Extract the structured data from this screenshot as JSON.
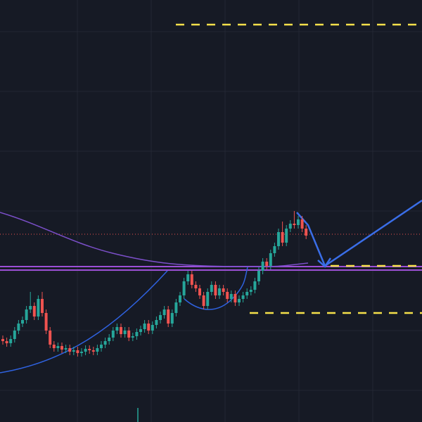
{
  "chart_data": {
    "type": "candlestick",
    "ylim": [
      0,
      600
    ],
    "up_color": "#26a69a",
    "down_color": "#ef5350",
    "open": [
      118,
      115,
      112,
      118,
      130,
      140,
      145,
      160,
      165,
      150,
      175,
      155,
      130,
      110,
      105,
      108,
      103,
      105,
      100,
      102,
      98,
      100,
      104,
      102,
      100,
      105,
      110,
      115,
      120,
      130,
      135,
      125,
      130,
      120,
      122,
      128,
      132,
      140,
      130,
      138,
      145,
      152,
      160,
      140,
      155,
      170,
      180,
      200,
      210,
      195,
      190,
      180,
      165,
      185,
      195,
      180,
      190,
      185,
      175,
      182,
      170,
      175,
      180,
      185,
      188,
      200,
      215,
      228,
      222,
      240,
      250,
      270,
      255,
      275,
      282,
      280,
      288,
      275
    ],
    "high": [
      123,
      120,
      123,
      135,
      145,
      150,
      165,
      185,
      170,
      180,
      185,
      160,
      135,
      115,
      113,
      113,
      110,
      110,
      107,
      107,
      105,
      109,
      109,
      107,
      110,
      115,
      120,
      125,
      135,
      140,
      140,
      135,
      135,
      127,
      133,
      137,
      145,
      145,
      143,
      150,
      157,
      165,
      165,
      160,
      175,
      185,
      205,
      215,
      215,
      200,
      195,
      185,
      190,
      200,
      200,
      195,
      195,
      190,
      187,
      187,
      180,
      185,
      190,
      193,
      205,
      220,
      233,
      233,
      245,
      255,
      275,
      285,
      280,
      287,
      300,
      293,
      293,
      280
    ],
    "low": [
      110,
      107,
      107,
      113,
      125,
      135,
      140,
      155,
      145,
      145,
      150,
      125,
      105,
      100,
      100,
      98,
      98,
      95,
      95,
      93,
      93,
      95,
      97,
      95,
      95,
      100,
      105,
      110,
      115,
      125,
      120,
      120,
      115,
      115,
      117,
      123,
      127,
      125,
      125,
      133,
      140,
      147,
      135,
      135,
      150,
      165,
      175,
      195,
      190,
      185,
      175,
      160,
      160,
      180,
      175,
      175,
      180,
      170,
      170,
      165,
      165,
      170,
      175,
      180,
      183,
      195,
      210,
      217,
      217,
      235,
      245,
      250,
      250,
      270,
      275,
      275,
      270,
      260
    ],
    "close": [
      115,
      112,
      118,
      130,
      140,
      145,
      160,
      165,
      150,
      175,
      155,
      130,
      110,
      105,
      108,
      103,
      105,
      100,
      102,
      98,
      100,
      104,
      102,
      100,
      105,
      110,
      115,
      120,
      130,
      135,
      125,
      130,
      120,
      122,
      128,
      132,
      140,
      130,
      138,
      145,
      152,
      160,
      140,
      155,
      170,
      180,
      200,
      210,
      195,
      190,
      180,
      165,
      185,
      195,
      180,
      190,
      185,
      175,
      182,
      170,
      175,
      180,
      185,
      188,
      200,
      215,
      228,
      222,
      240,
      250,
      270,
      255,
      275,
      282,
      280,
      288,
      275,
      265
    ]
  }
}
